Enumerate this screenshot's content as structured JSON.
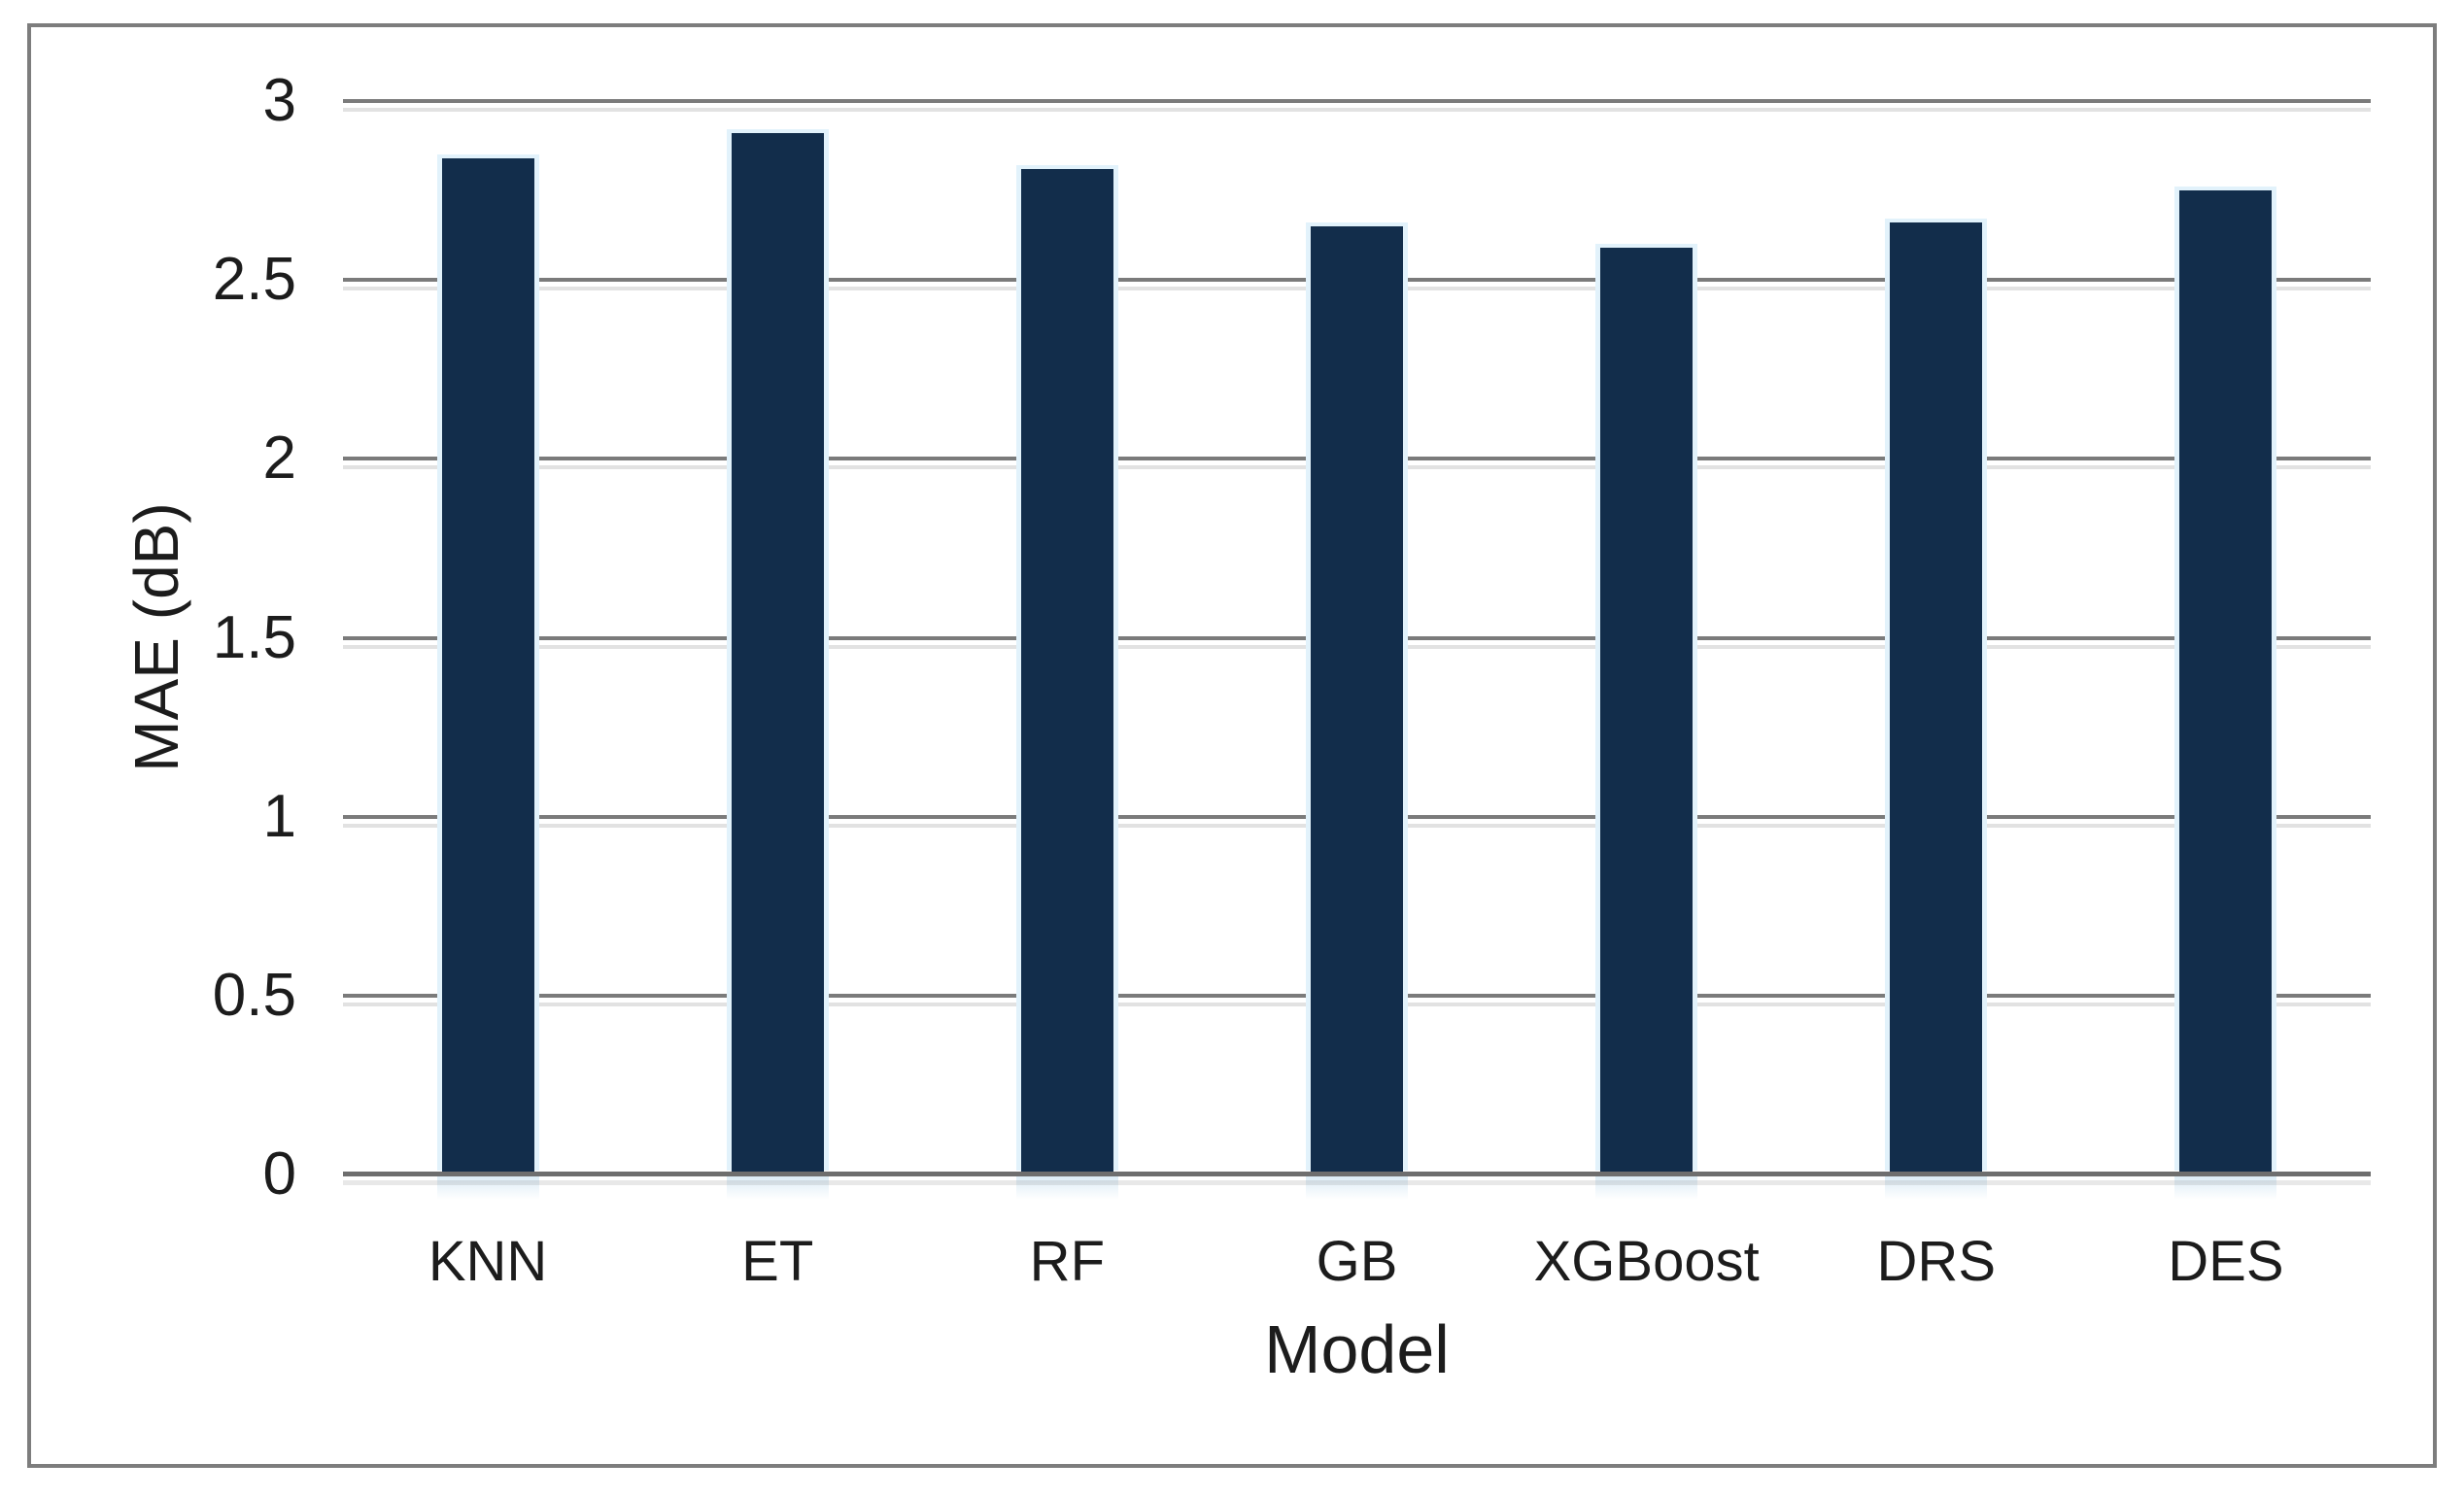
{
  "figure": {
    "background_color": "#ffffff",
    "frame_border_color": "#7d7d7d"
  },
  "chart_data": {
    "type": "bar",
    "title": "",
    "xlabel": "Model",
    "ylabel": "MAE (dB)",
    "categories": [
      "KNN",
      "ET",
      "RF",
      "GB",
      "XGBoost",
      "DRS",
      "DES"
    ],
    "values": [
      2.84,
      2.91,
      2.81,
      2.65,
      2.59,
      2.66,
      2.75
    ],
    "ylim": [
      0,
      3
    ],
    "yticks": [
      0,
      0.5,
      1,
      1.5,
      2,
      2.5,
      3
    ],
    "ytick_labels": [
      "0",
      "0.5",
      "1",
      "1.5",
      "2",
      "2.5",
      "3"
    ],
    "grid": true,
    "legend": false,
    "legend_position": "none",
    "bar_color": "#122d4b",
    "bar_glow_color": "#e2f2fb",
    "gridline_color": "#7b7b7b",
    "axis_line_color": "#6e6e6e",
    "text_color": "#1c1c1c"
  }
}
